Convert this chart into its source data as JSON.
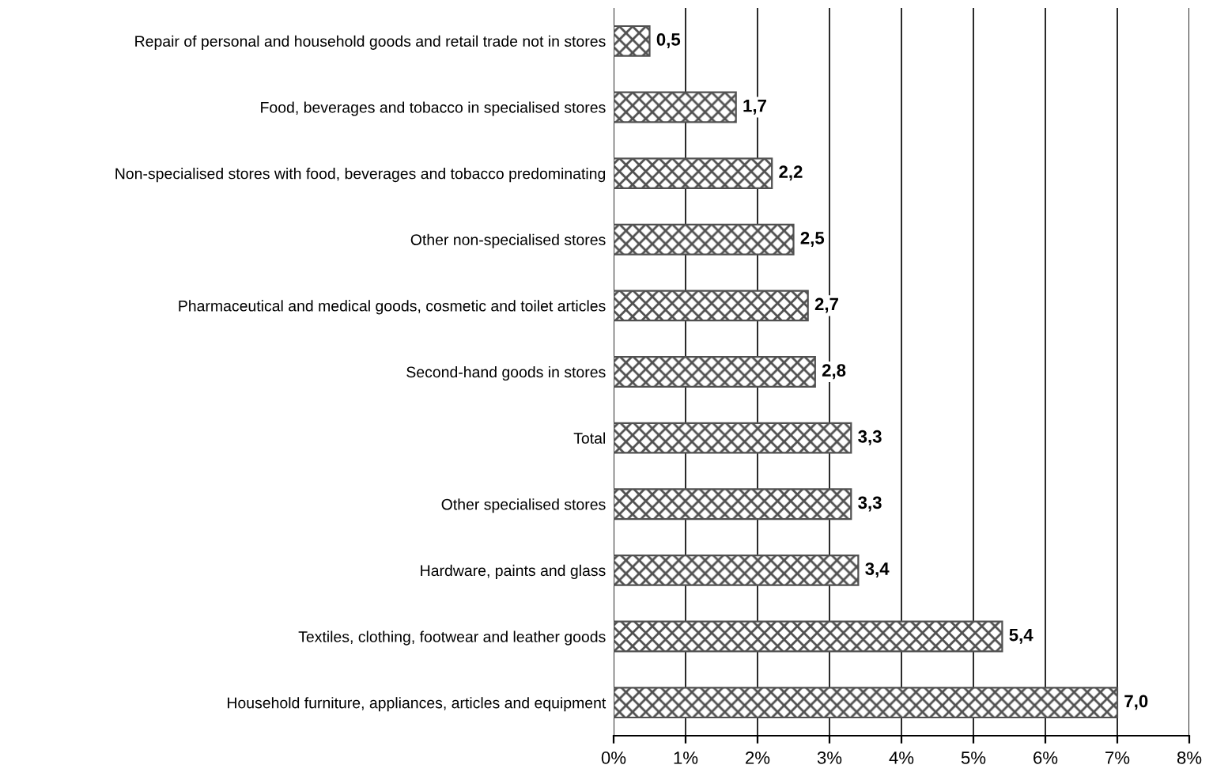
{
  "chart_data": {
    "type": "bar",
    "orientation": "horizontal",
    "categories": [
      "Repair of personal and household goods and retail trade not in stores",
      "Food, beverages and tobacco in specialised stores",
      "Non-specialised stores with food, beverages and tobacco predominating",
      "Other non-specialised stores",
      "Pharmaceutical and medical goods, cosmetic and toilet articles",
      "Second-hand goods in stores",
      "Total",
      "Other specialised stores",
      "Hardware, paints and glass",
      "Textiles, clothing, footwear and leather goods",
      "Household furniture, appliances, articles and equipment"
    ],
    "values": [
      0.5,
      1.7,
      2.2,
      2.5,
      2.7,
      2.8,
      3.3,
      3.3,
      3.4,
      5.4,
      7.0
    ],
    "value_labels": [
      "0,5",
      "1,7",
      "2,2",
      "2,5",
      "2,7",
      "2,8",
      "3,3",
      "3,3",
      "3,4",
      "5,4",
      "7,0"
    ],
    "color": "#505050",
    "xlim": [
      0,
      8
    ],
    "xticks": [
      {
        "value": 0,
        "label": "0%"
      },
      {
        "value": 1,
        "label": "1%"
      },
      {
        "value": 2,
        "label": "2%"
      },
      {
        "value": 3,
        "label": "3%"
      },
      {
        "value": 4,
        "label": "4%"
      },
      {
        "value": 5,
        "label": "5%"
      },
      {
        "value": 6,
        "label": "6%"
      },
      {
        "value": 7,
        "label": "7%"
      },
      {
        "value": 8,
        "label": "8%"
      }
    ],
    "grid": "x"
  }
}
